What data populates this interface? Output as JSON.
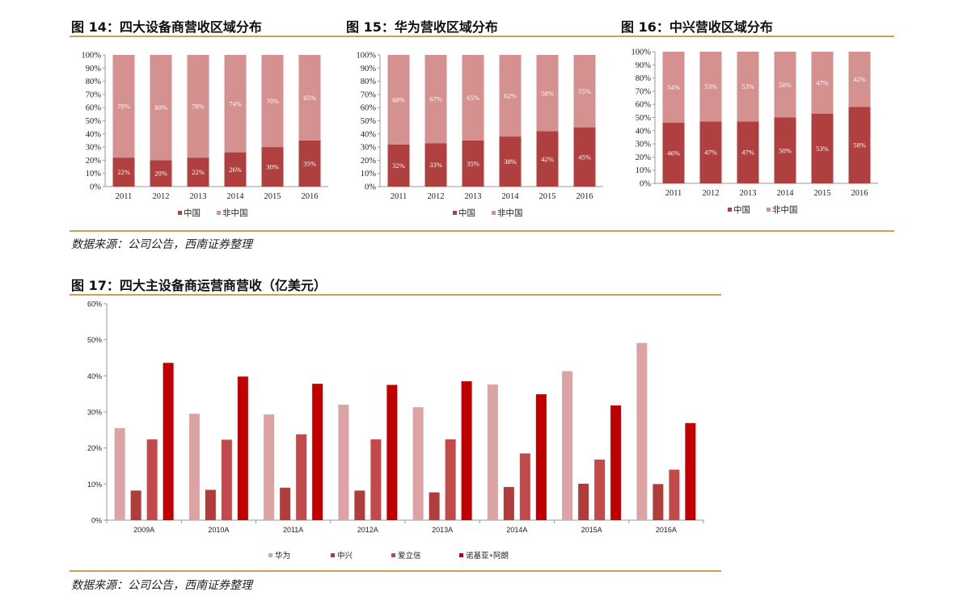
{
  "fig14": {
    "title": "图 14：四大设备商营收区域分布"
  },
  "fig15": {
    "title": "图 15：华为营收区域分布"
  },
  "fig16": {
    "title": "图 16：中兴营收区域分布"
  },
  "fig17": {
    "title": "图 17：四大主设备商运营商营收（亿美元）"
  },
  "source_top": "数据来源：公司公告，西南证券整理",
  "source_bottom": "数据来源：公司公告，西南证券整理",
  "colors": {
    "china": "#b0403f",
    "nonchina": "#d59090",
    "huawei": "#dba3a3",
    "zte": "#b03c3c",
    "ericsson": "#c24a4a",
    "nokia": "#c00000",
    "rule": "#c9a25a",
    "axis": "#999999"
  },
  "chart_data": [
    {
      "id": "fig14",
      "type": "bar",
      "stacked": true,
      "categories": [
        "2011",
        "2012",
        "2013",
        "2014",
        "2015",
        "2016"
      ],
      "series": [
        {
          "name": "中国",
          "values": [
            22,
            20,
            22,
            26,
            30,
            35
          ],
          "labels": [
            "22%",
            "20%",
            "22%",
            "26%",
            "30%",
            "35%"
          ]
        },
        {
          "name": "非中国",
          "values": [
            78,
            80,
            78,
            74,
            70,
            65
          ],
          "labels": [
            "78%",
            "80%",
            "78%",
            "74%",
            "70%",
            "65%"
          ]
        }
      ],
      "yticks": [
        "0%",
        "10%",
        "20%",
        "30%",
        "40%",
        "50%",
        "60%",
        "70%",
        "80%",
        "90%",
        "100%"
      ],
      "ylim": [
        0,
        100
      ]
    },
    {
      "id": "fig15",
      "type": "bar",
      "stacked": true,
      "categories": [
        "2011",
        "2012",
        "2013",
        "2014",
        "2015",
        "2016"
      ],
      "series": [
        {
          "name": "中国",
          "values": [
            32,
            33,
            35,
            38,
            42,
            45
          ],
          "labels": [
            "32%",
            "33%",
            "35%",
            "38%",
            "42%",
            "45%"
          ]
        },
        {
          "name": "非中国",
          "values": [
            68,
            67,
            65,
            62,
            58,
            55
          ],
          "labels": [
            "68%",
            "67%",
            "65%",
            "62%",
            "58%",
            "55%"
          ]
        }
      ],
      "yticks": [
        "0%",
        "10%",
        "20%",
        "30%",
        "40%",
        "50%",
        "60%",
        "70%",
        "80%",
        "90%",
        "100%"
      ],
      "ylim": [
        0,
        100
      ]
    },
    {
      "id": "fig16",
      "type": "bar",
      "stacked": true,
      "categories": [
        "2011",
        "2012",
        "2013",
        "2014",
        "2015",
        "2016"
      ],
      "series": [
        {
          "name": "中国",
          "values": [
            46,
            47,
            47,
            50,
            53,
            58
          ],
          "labels": [
            "46%",
            "47%",
            "47%",
            "50%",
            "53%",
            "58%"
          ]
        },
        {
          "name": "非中国",
          "values": [
            54,
            53,
            53,
            50,
            47,
            42
          ],
          "labels": [
            "54%",
            "53%",
            "53%",
            "50%",
            "47%",
            "42%"
          ]
        }
      ],
      "yticks": [
        "0%",
        "10%",
        "20%",
        "30%",
        "40%",
        "50%",
        "60%",
        "70%",
        "80%",
        "90%",
        "100%"
      ],
      "ylim": [
        0,
        100
      ]
    },
    {
      "id": "fig17",
      "type": "bar",
      "stacked": false,
      "categories": [
        "2009A",
        "2010A",
        "2011A",
        "2012A",
        "2013A",
        "2014A",
        "2015A",
        "2016A"
      ],
      "series": [
        {
          "name": "华为",
          "values": [
            25.5,
            29.5,
            29.3,
            32.0,
            31.3,
            37.6,
            41.3,
            49.1
          ]
        },
        {
          "name": "中兴",
          "values": [
            8.2,
            8.4,
            9.0,
            8.2,
            7.7,
            9.2,
            10.1,
            10.0
          ]
        },
        {
          "name": "爱立信",
          "values": [
            22.4,
            22.3,
            23.8,
            22.4,
            22.4,
            18.5,
            16.8,
            14.0
          ]
        },
        {
          "name": "诺基亚+阿朗",
          "values": [
            43.6,
            39.8,
            37.8,
            37.5,
            38.5,
            34.9,
            31.8,
            26.9
          ]
        }
      ],
      "yticks": [
        "0%",
        "10%",
        "20%",
        "30%",
        "40%",
        "50%",
        "60%"
      ],
      "ylim": [
        0,
        60
      ]
    }
  ]
}
